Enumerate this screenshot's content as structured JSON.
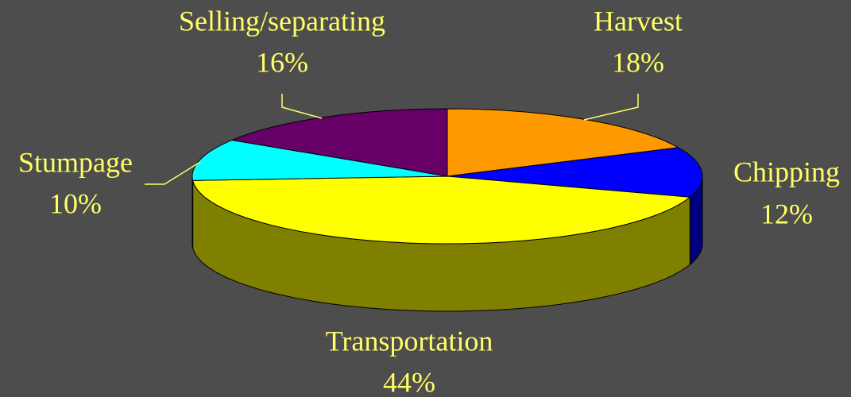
{
  "chart_data": {
    "type": "pie",
    "categories": [
      "Harvest",
      "Chipping",
      "Transportation",
      "Stumpage",
      "Selling/separating"
    ],
    "values": [
      18,
      12,
      44,
      10,
      16
    ],
    "value_labels": [
      "18%",
      "12%",
      "44%",
      "10%",
      "16%"
    ],
    "colors": [
      "#ff9900",
      "#0000ff",
      "#ffff00",
      "#00ffff",
      "#660066"
    ]
  }
}
